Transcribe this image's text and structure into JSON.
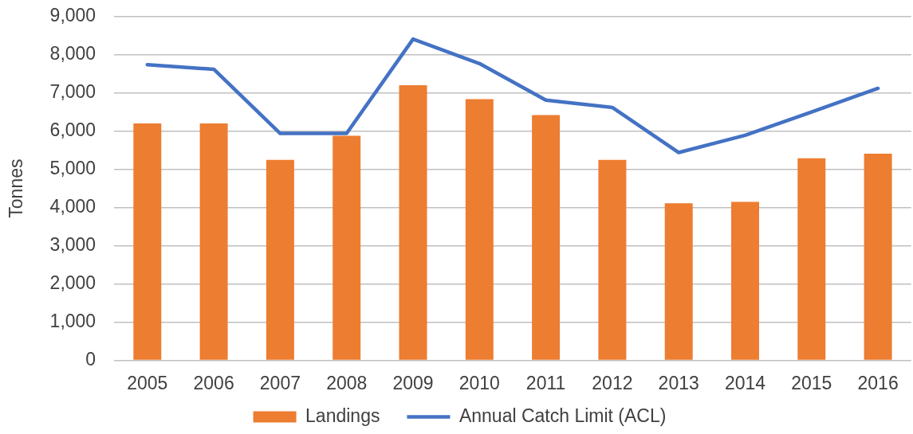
{
  "chart_data": {
    "type": "bar",
    "categories": [
      "2005",
      "2006",
      "2007",
      "2008",
      "2009",
      "2010",
      "2011",
      "2012",
      "2013",
      "2014",
      "2015",
      "2016"
    ],
    "series": [
      {
        "name": "Landings",
        "color": "#ed7d31",
        "values": [
          6200,
          6200,
          5250,
          5880,
          7200,
          6840,
          6420,
          5250,
          4110,
          4150,
          5290,
          5410
        ]
      },
      {
        "name": "Annual Catch Limit (ACL)",
        "type": "line",
        "color": "#4472c4",
        "values": [
          7740,
          7620,
          5940,
          5940,
          8410,
          7770,
          6810,
          6620,
          5440,
          5890,
          6500,
          7120
        ]
      }
    ],
    "ylabel": "Tonnes",
    "ylim": [
      0,
      9000
    ],
    "yticks": [
      0,
      {
        "value": 1000,
        "label": "1,000"
      },
      {
        "value": 2000,
        "label": "2,000"
      },
      {
        "value": 3000,
        "label": "3,000"
      },
      {
        "value": 4000,
        "label": "4,000"
      },
      {
        "value": 5000,
        "label": "5,000"
      },
      {
        "value": 6000,
        "label": "6,000"
      },
      {
        "value": 7000,
        "label": "7,000"
      },
      {
        "value": 8000,
        "label": "8,000"
      },
      {
        "value": 9000,
        "label": "9,000"
      }
    ],
    "grid": "y",
    "legend": "bottom",
    "marker": "none",
    "line_style": "solid"
  }
}
